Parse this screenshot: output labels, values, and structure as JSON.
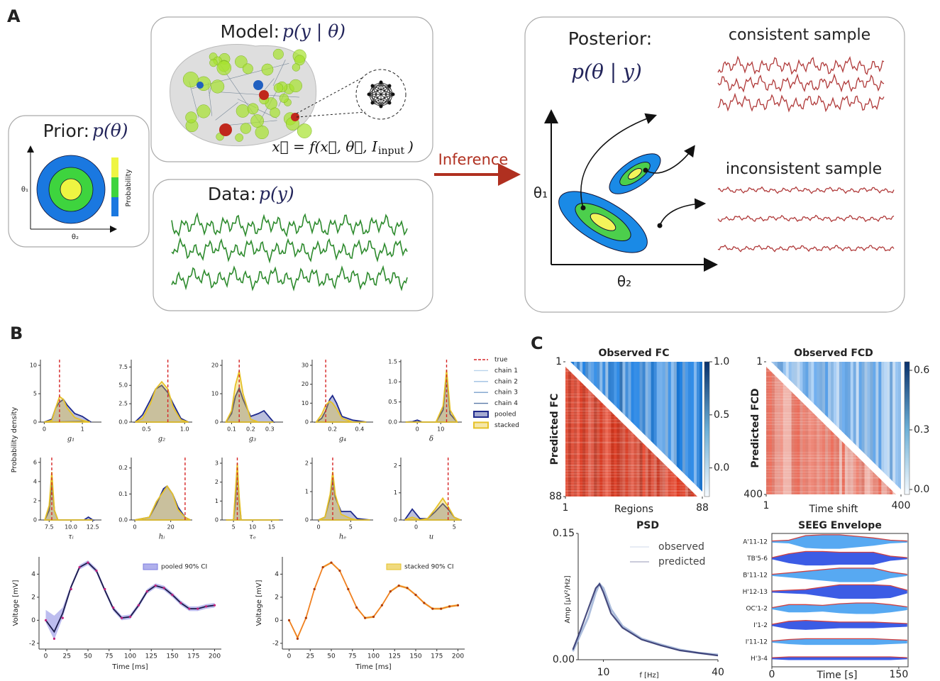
{
  "panels": {
    "a": "A",
    "b": "B",
    "c": "C"
  },
  "panel_a": {
    "prior": {
      "title": "Prior:",
      "math": "p(θ)",
      "colorbar_label": "Probability",
      "y_axis": "θ₁",
      "x_axis": "θ₂"
    },
    "model": {
      "title": "Model:",
      "math": "p(y | θ)",
      "equation": {
        "main": "x⃗ = f(x⃗, θ⃗, I",
        "sub": "input",
        "close": ")"
      }
    },
    "data": {
      "title": "Data:",
      "math": "p(y)"
    },
    "arrow_label": "Inference",
    "posterior": {
      "title": "Posterior:",
      "math": "p(θ | y)",
      "y_axis": "θ₁",
      "x_axis": "θ₂",
      "consistent": "consistent sample",
      "inconsistent": "inconsistent sample"
    }
  },
  "chart_data": [
    {
      "type": "density",
      "ylabel": "Probability density",
      "legend": [
        {
          "name": "true",
          "color": "#d62728",
          "style": "dashed"
        },
        {
          "name": "chain 1",
          "color": "#b9d3ec",
          "style": "line"
        },
        {
          "name": "chain 2",
          "color": "#9dbfe2",
          "style": "line"
        },
        {
          "name": "chain 3",
          "color": "#7aa0cc",
          "style": "line"
        },
        {
          "name": "chain 4",
          "color": "#5a7aa8",
          "style": "line"
        },
        {
          "name": "pooled",
          "color": "#1f2a8c",
          "style": "box"
        },
        {
          "name": "stacked",
          "color": "#e6c229",
          "style": "box"
        }
      ],
      "panels": [
        {
          "xlabel": "g₁",
          "xlim": [
            -0.1,
            1.5
          ],
          "xticks": [
            0,
            1
          ],
          "ylim": [
            0,
            11
          ],
          "yticks": [
            0,
            5,
            10
          ],
          "true": 0.4,
          "x": [
            0,
            0.2,
            0.3,
            0.4,
            0.5,
            0.6,
            0.8,
            1.0,
            1.2
          ],
          "pooled": [
            0,
            0.5,
            2.5,
            3.5,
            4,
            3,
            1.5,
            1,
            0.1
          ],
          "stacked": [
            0,
            0.3,
            2.5,
            4.5,
            4,
            2.5,
            0.8,
            0.3,
            0
          ]
        },
        {
          "xlabel": "g₂",
          "xlim": [
            0.3,
            1.1
          ],
          "xticks": [
            0.5,
            {
              "value": 1,
              "label": "1.0"
            }
          ],
          "ylim": [
            0,
            8.5
          ],
          "yticks": [
            {
              "value": 0,
              "label": "0.0"
            },
            2.5,
            {
              "value": 5,
              "label": "5.0"
            },
            7.5
          ],
          "true": 0.78,
          "x": [
            0.35,
            0.45,
            0.55,
            0.62,
            0.7,
            0.78,
            0.85,
            0.95,
            1.05
          ],
          "pooled": [
            0,
            1,
            3,
            4.5,
            5,
            4,
            2.5,
            0.5,
            0
          ],
          "stacked": [
            0,
            0.5,
            2.5,
            4.5,
            5.5,
            4.5,
            2,
            0.3,
            0
          ]
        },
        {
          "xlabel": "g₃",
          "xlim": [
            0.05,
            0.37
          ],
          "xticks": [
            0.1,
            0.2,
            0.3
          ],
          "ylim": [
            0,
            22
          ],
          "yticks": [
            0,
            10,
            20
          ],
          "true": 0.14,
          "x": [
            0.07,
            0.1,
            0.12,
            0.14,
            0.16,
            0.2,
            0.24,
            0.27,
            0.32
          ],
          "pooled": [
            0,
            3,
            9,
            12,
            8,
            2,
            3,
            4,
            0
          ],
          "stacked": [
            0,
            4,
            13,
            18,
            10,
            1,
            0,
            0,
            0
          ]
        },
        {
          "xlabel": "g₄",
          "xlim": [
            0.05,
            0.5
          ],
          "xticks": [
            0.2,
            0.4
          ],
          "ylim": [
            0,
            33
          ],
          "yticks": [
            0,
            10,
            20,
            30
          ],
          "true": 0.15,
          "x": [
            0.08,
            0.12,
            0.15,
            0.18,
            0.2,
            0.23,
            0.27,
            0.35,
            0.45
          ],
          "pooled": [
            0,
            2,
            6,
            12,
            14,
            10,
            3,
            1,
            0
          ],
          "stacked": [
            0,
            4,
            9,
            11,
            10,
            7,
            2,
            0,
            0
          ]
        },
        {
          "xlabel": "δ",
          "xlim": [
            -7,
            19
          ],
          "xticks": [
            0,
            10
          ],
          "ylim": [
            0,
            1.55
          ],
          "yticks": [
            {
              "value": 0,
              "label": "0.0"
            },
            0.5,
            {
              "value": 1,
              "label": "1.0"
            },
            1.5
          ],
          "true": 12.5,
          "x": [
            -5,
            -2,
            0,
            2,
            8,
            11,
            12.5,
            14,
            17
          ],
          "pooled": [
            0,
            0.01,
            0.05,
            0,
            0,
            0.3,
            1.2,
            0.2,
            0
          ],
          "stacked": [
            0,
            0,
            0,
            0,
            0,
            0.4,
            1.3,
            0.3,
            0
          ]
        },
        {
          "xlabel": "τᵢ",
          "xlim": [
            6.5,
            13.5
          ],
          "xticks": [
            7.5,
            {
              "value": 10,
              "label": "10.0"
            },
            12.5
          ],
          "ylim": [
            0,
            6.5
          ],
          "yticks": [
            0,
            2,
            4,
            6
          ],
          "true": 7.8,
          "x": [
            7,
            7.5,
            7.8,
            8.1,
            8.5,
            10,
            11.5,
            12,
            12.5
          ],
          "pooled": [
            0,
            1,
            4,
            1,
            0,
            0,
            0,
            0.3,
            0
          ],
          "stacked": [
            0,
            1.5,
            5,
            1,
            0,
            0,
            0,
            0,
            0
          ]
        },
        {
          "xlabel": "hᵢ",
          "xlim": [
            -2,
            32
          ],
          "xticks": [
            0,
            20
          ],
          "ylim": [
            0,
            0.24
          ],
          "yticks": [
            {
              "value": 0,
              "label": "0.0"
            },
            0.1,
            0.2
          ],
          "true": 28,
          "x": [
            0,
            8,
            12,
            16,
            18,
            21,
            24,
            28,
            31
          ],
          "pooled": [
            0,
            0.01,
            0.06,
            0.12,
            0.13,
            0.1,
            0.05,
            0.01,
            0
          ],
          "stacked": [
            0,
            0.01,
            0.07,
            0.11,
            0.13,
            0.1,
            0.04,
            0.01,
            0
          ]
        },
        {
          "xlabel": "τₑ",
          "xlim": [
            2,
            18
          ],
          "xticks": [
            5,
            10,
            15
          ],
          "ylim": [
            0,
            3.3
          ],
          "yticks": [
            0,
            1,
            2,
            3
          ],
          "true": 6,
          "x": [
            3,
            5,
            5.5,
            6,
            6.5,
            7,
            10,
            14,
            17
          ],
          "pooled": [
            0,
            0,
            1,
            2.8,
            1,
            0,
            0,
            0,
            0
          ],
          "stacked": [
            0,
            0,
            1.5,
            3,
            1.2,
            0,
            0,
            0,
            0
          ]
        },
        {
          "xlabel": "hₑ",
          "xlim": [
            -1,
            8.5
          ],
          "xticks": [
            0,
            5
          ],
          "ylim": [
            0,
            2.2
          ],
          "yticks": [
            0,
            1,
            2
          ],
          "true": 2.2,
          "x": [
            0,
            1,
            1.8,
            2.2,
            2.6,
            3.5,
            5,
            6,
            8
          ],
          "pooled": [
            0,
            0.1,
            0.8,
            1.5,
            0.8,
            0.3,
            0.3,
            0.05,
            0
          ],
          "stacked": [
            0,
            0.1,
            0.9,
            1.7,
            0.9,
            0.2,
            0.05,
            0,
            0
          ]
        },
        {
          "xlabel": "u",
          "xlim": [
            -2,
            6
          ],
          "xticks": [
            0,
            5
          ],
          "ylim": [
            0,
            2.3
          ],
          "yticks": [
            0,
            1,
            2
          ],
          "true": 4.2,
          "x": [
            -1.5,
            -0.5,
            0.5,
            1.5,
            2.5,
            3.5,
            4.2,
            5,
            5.8
          ],
          "pooled": [
            0,
            0.4,
            0.05,
            0.05,
            0.3,
            0.6,
            0.4,
            0.1,
            0
          ],
          "stacked": [
            0,
            0.1,
            0,
            0.05,
            0.4,
            0.8,
            0.5,
            0.1,
            0
          ]
        }
      ]
    },
    {
      "type": "timeseries",
      "xlabel": "Time [ms]",
      "ylabel": "Voltage [mV]",
      "xlim": [
        -8,
        208
      ],
      "xticks": [
        0,
        25,
        50,
        75,
        100,
        125,
        150,
        175,
        200
      ],
      "ylim": [
        -2.5,
        5.5
      ],
      "yticks": [
        -2,
        0,
        2,
        4
      ],
      "x": [
        0,
        10,
        20,
        30,
        40,
        50,
        60,
        70,
        80,
        90,
        100,
        110,
        120,
        130,
        140,
        150,
        160,
        170,
        180,
        190,
        200
      ],
      "observed": {
        "color": "#c0207a",
        "values": [
          0,
          -1.6,
          0.2,
          2.7,
          4.6,
          5.0,
          4.3,
          2.7,
          1.1,
          0.2,
          0.3,
          1.3,
          2.5,
          3.0,
          2.8,
          2.2,
          1.5,
          1.0,
          1.0,
          1.2,
          1.3
        ]
      },
      "line": {
        "color": "#1a1a4a",
        "values": [
          0,
          -1.0,
          0.6,
          2.9,
          4.6,
          5.0,
          4.3,
          2.6,
          1.0,
          0.2,
          0.3,
          1.3,
          2.5,
          3.0,
          2.8,
          2.2,
          1.5,
          1.0,
          1.0,
          1.2,
          1.3
        ]
      },
      "band": {
        "name": "pooled 90% CI",
        "color": "#7b7be0",
        "lower": [
          -0.2,
          -1.7,
          0.2,
          2.7,
          4.4,
          4.8,
          4.1,
          2.4,
          0.8,
          0,
          0.1,
          1.1,
          2.3,
          2.8,
          2.6,
          2.0,
          1.3,
          0.8,
          0.8,
          1.0,
          1.1
        ],
        "upper": [
          0.9,
          0.4,
          1.1,
          3.1,
          4.8,
          5.2,
          4.5,
          2.8,
          1.2,
          0.4,
          0.5,
          1.5,
          2.7,
          3.2,
          3.0,
          2.4,
          1.7,
          1.2,
          1.2,
          1.4,
          1.5
        ]
      }
    },
    {
      "type": "timeseries",
      "xlabel": "Time [ms]",
      "ylabel": "Voltage [mV]",
      "xlim": [
        -8,
        208
      ],
      "xticks": [
        0,
        25,
        50,
        75,
        100,
        125,
        150,
        175,
        200
      ],
      "ylim": [
        -2.5,
        5.5
      ],
      "yticks": [
        -2,
        0,
        2,
        4
      ],
      "x": [
        0,
        10,
        20,
        30,
        40,
        50,
        60,
        70,
        80,
        90,
        100,
        110,
        120,
        130,
        140,
        150,
        160,
        170,
        180,
        190,
        200
      ],
      "observed": {
        "color": "#b03a00",
        "values": [
          0,
          -1.6,
          0.2,
          2.7,
          4.6,
          5.0,
          4.3,
          2.7,
          1.1,
          0.2,
          0.3,
          1.3,
          2.5,
          3.0,
          2.8,
          2.2,
          1.5,
          1.0,
          1.0,
          1.2,
          1.3
        ]
      },
      "line": {
        "color": "#f08020",
        "values": [
          0,
          -1.5,
          0.2,
          2.7,
          4.6,
          5.0,
          4.3,
          2.7,
          1.1,
          0.2,
          0.3,
          1.3,
          2.5,
          3.0,
          2.8,
          2.2,
          1.5,
          1.0,
          1.0,
          1.2,
          1.3
        ]
      },
      "band": {
        "name": "stacked 90% CI",
        "color": "#e6c229",
        "lower": [
          -0.1,
          -1.7,
          0.1,
          2.6,
          4.5,
          4.9,
          4.2,
          2.6,
          1.0,
          0.1,
          0.2,
          1.2,
          2.4,
          2.9,
          2.7,
          2.1,
          1.4,
          0.9,
          0.9,
          1.1,
          1.2
        ],
        "upper": [
          0.1,
          -1.4,
          0.3,
          2.8,
          4.7,
          5.1,
          4.4,
          2.8,
          1.2,
          0.3,
          0.4,
          1.4,
          2.6,
          3.1,
          2.9,
          2.3,
          1.6,
          1.1,
          1.1,
          1.3,
          1.4
        ]
      }
    },
    {
      "type": "heatmap",
      "title": "Observed FC",
      "ylabel": "Predicted FC",
      "xlabel": "Regions",
      "xlim": [
        1,
        88
      ],
      "xticks": [
        1,
        88
      ],
      "ylim": [
        88,
        1
      ],
      "yticks": [
        1,
        88
      ],
      "clim": [
        -0.27,
        1
      ],
      "cticks": [
        {
          "value": 1,
          "label": "1.0"
        },
        0.5,
        {
          "value": 0,
          "label": "0.0"
        }
      ]
    },
    {
      "type": "heatmap",
      "title": "Observed FCD",
      "ylabel": "Predicted FCD",
      "xlabel": "Time shift",
      "xlim": [
        1,
        400
      ],
      "xticks": [
        1,
        400
      ],
      "ylim": [
        400,
        1
      ],
      "yticks": [
        1,
        400
      ],
      "clim": [
        -0.025,
        0.643
      ],
      "cticks": [
        0.6,
        0.3,
        {
          "value": 0,
          "label": "0.0"
        }
      ]
    },
    {
      "type": "psd",
      "title": "PSD",
      "xlabel": "f [Hz]",
      "ylabel": "Amp [μV²/Hz]",
      "xlim": [
        3.4,
        40
      ],
      "xticks": [
        10,
        40
      ],
      "ylim": [
        0,
        0.15
      ],
      "yticks": [
        {
          "value": 0,
          "label": "0.00"
        },
        {
          "value": 0.15,
          "label": "0.15"
        }
      ],
      "x": [
        2,
        4,
        6,
        8,
        9,
        10,
        12,
        15,
        20,
        25,
        30,
        35,
        40
      ],
      "series": [
        {
          "name": "observed",
          "color": "#9fb3d6",
          "values": [
            0.01,
            0.03,
            0.05,
            0.08,
            0.09,
            0.085,
            0.06,
            0.04,
            0.025,
            0.018,
            0.012,
            0.008,
            0.006
          ]
        },
        {
          "name": "predicted",
          "color": "#2a2f6a",
          "values": [
            0.012,
            0.035,
            0.06,
            0.085,
            0.09,
            0.08,
            0.055,
            0.038,
            0.024,
            0.017,
            0.011,
            0.008,
            0.005
          ]
        }
      ]
    },
    {
      "type": "seeg",
      "title": "SEEG Envelope",
      "xlabel": "Time [s]",
      "xlim": [
        0,
        161
      ],
      "xticks": [
        0,
        150
      ],
      "x": [
        0,
        20,
        40,
        60,
        80,
        100,
        120,
        140,
        160
      ],
      "categories": [
        "A'11-12",
        "TB'5-6",
        "B'11-12",
        "H'12-13",
        "OC'1-2",
        "I'1-2",
        "I'11-12",
        "H'3-4"
      ],
      "amplitude": [
        [
          1,
          2,
          8,
          9,
          9,
          7,
          5,
          2,
          1
        ],
        [
          1,
          6,
          9,
          9,
          8,
          8,
          8,
          3,
          1
        ],
        [
          1,
          3,
          5,
          7,
          9,
          9,
          9,
          4,
          1
        ],
        [
          1,
          2,
          3,
          6,
          9,
          9,
          9,
          8,
          2
        ],
        [
          1,
          5,
          5,
          4,
          6,
          7,
          7,
          5,
          2
        ],
        [
          1,
          5,
          6,
          5,
          4,
          4,
          4,
          3,
          2
        ],
        [
          1,
          3,
          4,
          4,
          4,
          4,
          4,
          3,
          2
        ],
        [
          1,
          2,
          2,
          2,
          2,
          2,
          2,
          2,
          1
        ]
      ]
    }
  ]
}
